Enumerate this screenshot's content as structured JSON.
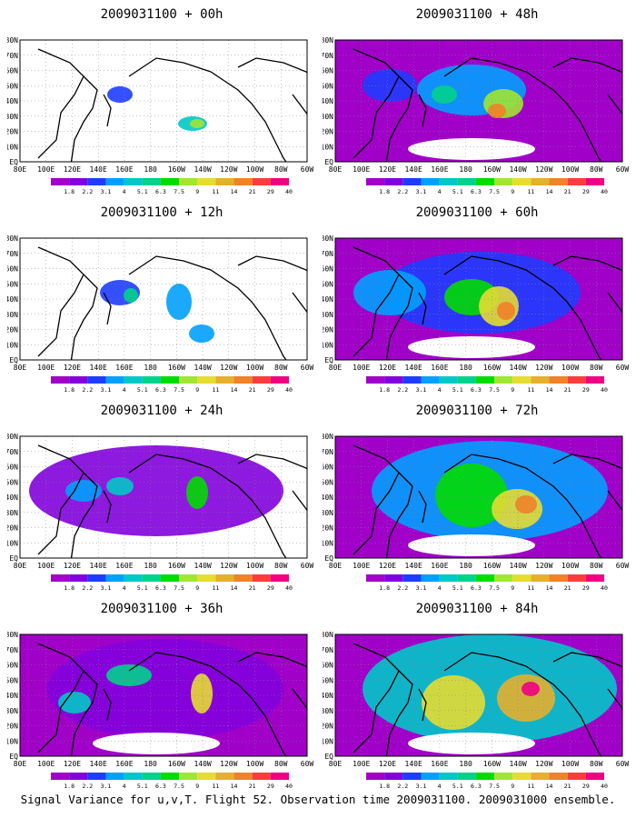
{
  "panels": [
    {
      "title": "2009031100 + 00h",
      "level": 0
    },
    {
      "title": "2009031100 + 48h",
      "level": 4
    },
    {
      "title": "2009031100 + 12h",
      "level": 1
    },
    {
      "title": "2009031100 + 60h",
      "level": 5
    },
    {
      "title": "2009031100 + 24h",
      "level": 2
    },
    {
      "title": "2009031100 + 72h",
      "level": 6
    },
    {
      "title": "2009031100 + 36h",
      "level": 3
    },
    {
      "title": "2009031100 + 84h",
      "level": 7
    }
  ],
  "lat_labels": [
    "80N",
    "70N",
    "60N",
    "50N",
    "40N",
    "30N",
    "20N",
    "10N",
    "EQ"
  ],
  "lon_labels": [
    "80E",
    "100E",
    "120E",
    "140E",
    "160E",
    "180",
    "160W",
    "140W",
    "120W",
    "100W",
    "80W",
    "60W"
  ],
  "colorbar": {
    "labels": [
      "1.8",
      "2.2",
      "3.1",
      "4",
      "5.1",
      "6.3",
      "7.5",
      "9",
      "11",
      "14",
      "21",
      "29",
      "40"
    ],
    "colors": [
      "#a000c8",
      "#8200dc",
      "#1e3cff",
      "#00a0ff",
      "#00c8c8",
      "#00d28c",
      "#00dc00",
      "#a0e632",
      "#e6dc32",
      "#e6af2d",
      "#f08228",
      "#fa3c3c",
      "#f00082"
    ]
  },
  "footer": "Signal Variance for u,v,T. Flight 52. Observation time 2009031100. 2009031000 ensemble."
}
